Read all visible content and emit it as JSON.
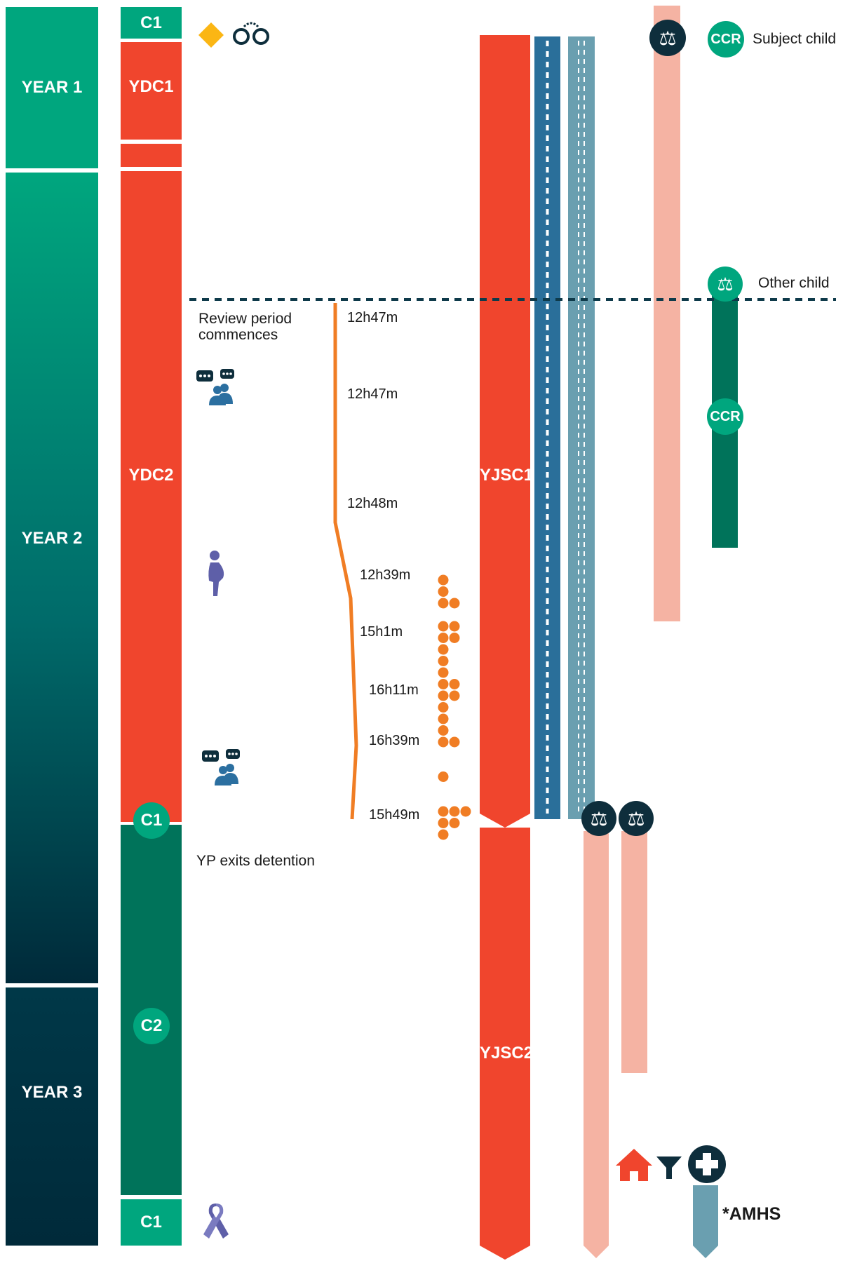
{
  "years": [
    {
      "label": "YEAR 1"
    },
    {
      "label": "YEAR 2"
    },
    {
      "label": "YEAR 3"
    }
  ],
  "detention": {
    "ydc1": "YDC1",
    "ydc2": "YDC2",
    "c1_top": "C1",
    "c1_exit": "C1",
    "c2": "C2",
    "c1_bottom": "C1"
  },
  "youth_justice": {
    "yjsc1": "YJSC1",
    "yjsc2": "YJSC2"
  },
  "legend": {
    "ccr": "CCR",
    "subject_child": "Subject child",
    "other_child": "Other child",
    "ccr_other": "CCR"
  },
  "annotations": {
    "review_period": "Review period commences",
    "yp_exits": "YP exits detention",
    "amhs": "*AMHS"
  },
  "durations": [
    "12h47m",
    "12h47m",
    "12h48m",
    "12h39m",
    "15h1m",
    "16h11m",
    "16h39m",
    "15h49m"
  ],
  "dot_rows": [
    1,
    1,
    2,
    0,
    2,
    2,
    1,
    1,
    1,
    2,
    2,
    1,
    1,
    1,
    2,
    0,
    0,
    1,
    0,
    0,
    3,
    2,
    1
  ],
  "icons": {
    "diamond": "warning-diamond-icon",
    "handcuffs": "handcuffs-icon",
    "scales": "scales-of-justice-icon",
    "meeting": "people-chat-icon",
    "pregnant": "pregnant-person-icon",
    "ribbon": "awareness-ribbon-icon",
    "house": "house-icon",
    "filter": "filter-icon",
    "medical": "medical-cross-icon"
  },
  "colors": {
    "green": "#00a67e",
    "dark_green": "#00735a",
    "navy": "#002a3a",
    "red": "#f0452d",
    "blue": "#2a6f9a",
    "steel": "#6a9fb0",
    "salmon": "#f5b3a3",
    "orange": "#f07d24",
    "icon_blue": "#2b6fa0",
    "purple": "#5e5fa8"
  }
}
